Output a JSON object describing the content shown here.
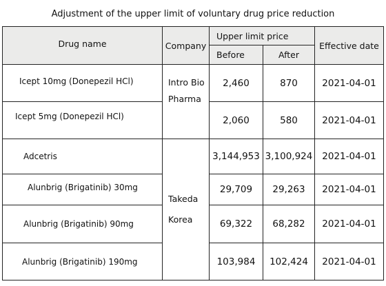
{
  "title": "Adjustment of the upper limit of voluntary drug price reduction",
  "headers": {
    "drug_name": "Drug name",
    "company": "Company",
    "upper_limit_price": "Upper limit price",
    "before": "Before",
    "after": "After",
    "effective_date": "Effective date"
  },
  "companies": {
    "intro": "Intro Bio\nPharma",
    "takeda": "Takeda\nKorea"
  },
  "rows": [
    {
      "drug": "Icept 10mg (Donepezil HCl)",
      "before": "2,460",
      "after": "870",
      "date": "2021-04-01"
    },
    {
      "drug": "Icept 5mg (Donepezil HCl)",
      "before": "2,060",
      "after": "580",
      "date": "2021-04-01"
    },
    {
      "drug": "Adcetris",
      "before": "3,144,953",
      "after": "3,100,924",
      "date": "2021-04-01"
    },
    {
      "drug": "Alunbrig (Brigatinib) 30mg",
      "before": "29,709",
      "after": "29,263",
      "date": "2021-04-01"
    },
    {
      "drug": "Alunbrig (Brigatinib) 90mg",
      "before": "69,322",
      "after": "68,282",
      "date": "2021-04-01"
    },
    {
      "drug": "Alunbrig (Brigatinib) 190mg",
      "before": "103,984",
      "after": "102,424",
      "date": "2021-04-01"
    }
  ]
}
